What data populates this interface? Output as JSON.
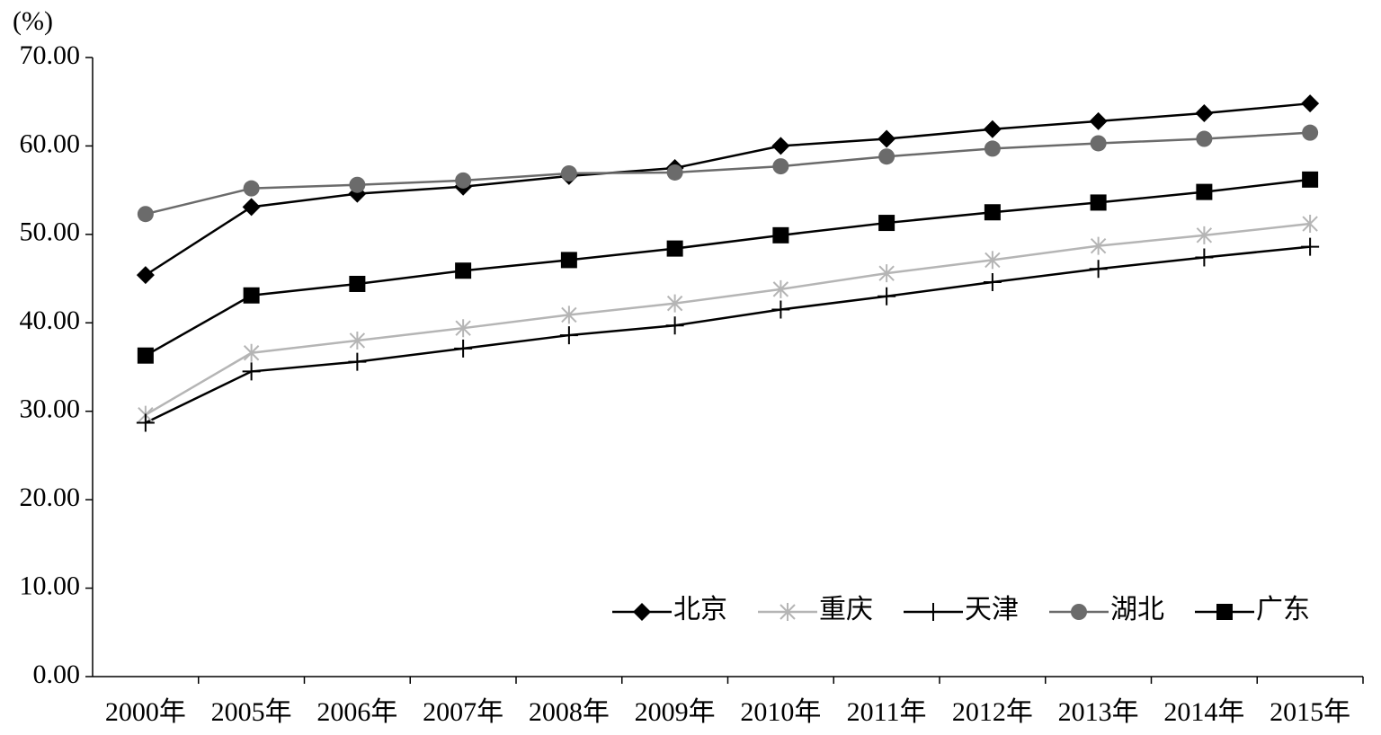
{
  "chart_data": {
    "type": "line",
    "y_label": "(%)",
    "categories": [
      "2000年",
      "2005年",
      "2006年",
      "2007年",
      "2008年",
      "2009年",
      "2010年",
      "2011年",
      "2012年",
      "2013年",
      "2014年",
      "2015年"
    ],
    "series": [
      {
        "name": "北京",
        "color": "#000000",
        "marker": "diamond",
        "values": [
          45.4,
          53.1,
          54.6,
          55.4,
          56.6,
          57.5,
          60.0,
          60.8,
          61.9,
          62.8,
          63.7,
          64.8
        ]
      },
      {
        "name": "重庆",
        "color": "#b5b5b5",
        "marker": "asterisk",
        "values": [
          29.6,
          36.6,
          38.0,
          39.4,
          40.9,
          42.2,
          43.8,
          45.6,
          47.1,
          48.7,
          49.9,
          51.2
        ]
      },
      {
        "name": "天津",
        "color": "#000000",
        "marker": "plus",
        "values": [
          28.7,
          34.5,
          35.6,
          37.1,
          38.6,
          39.7,
          41.5,
          43.0,
          44.6,
          46.1,
          47.4,
          48.6
        ]
      },
      {
        "name": "湖北",
        "color": "#6b6b6b",
        "marker": "circle",
        "values": [
          52.3,
          55.2,
          55.6,
          56.1,
          56.9,
          57.0,
          57.7,
          58.8,
          59.7,
          60.3,
          60.8,
          61.5
        ]
      },
      {
        "name": "广东",
        "color": "#000000",
        "marker": "square",
        "values": [
          36.3,
          43.1,
          44.4,
          45.9,
          47.1,
          48.4,
          49.9,
          51.3,
          52.5,
          53.6,
          54.8,
          56.2
        ]
      }
    ],
    "ylim": [
      0,
      70
    ],
    "yticks": [
      {
        "value": 0,
        "label": "0.00"
      },
      {
        "value": 10,
        "label": "10.00"
      },
      {
        "value": 20,
        "label": "20.00"
      },
      {
        "value": 30,
        "label": "30.00"
      },
      {
        "value": 40,
        "label": "40.00"
      },
      {
        "value": 50,
        "label": "50.00"
      },
      {
        "value": 60,
        "label": "60.00"
      },
      {
        "value": 70,
        "label": "70.00"
      }
    ],
    "grid": false,
    "legend": "lower right"
  }
}
